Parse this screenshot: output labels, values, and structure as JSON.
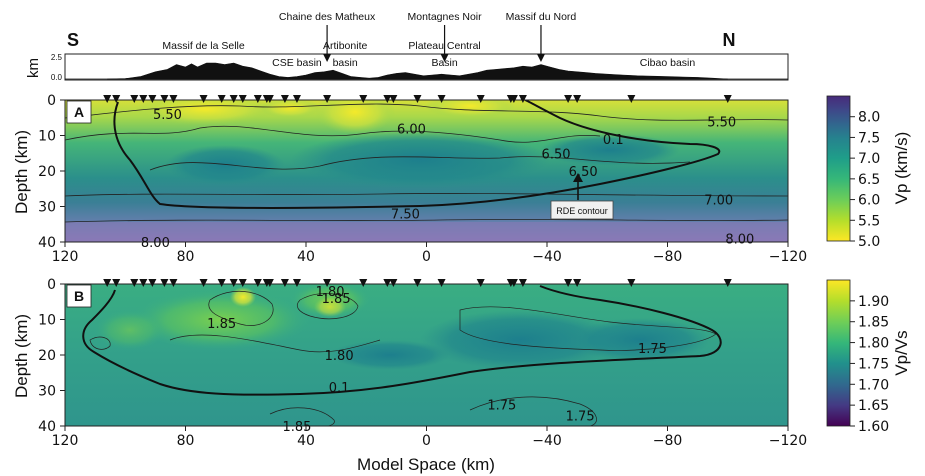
{
  "chart_data": [
    {
      "type": "heatmap",
      "panel": "A",
      "ylabel": "Depth (km)",
      "xlim": [
        120,
        -120
      ],
      "ylim": [
        40,
        0
      ],
      "x_ticks": [
        "120",
        "80",
        "40",
        "0",
        "−40",
        "−80",
        "−120"
      ],
      "x_tick_values": [
        120,
        80,
        40,
        0,
        -40,
        -80,
        -120
      ],
      "y_ticks": [
        "0",
        "10",
        "20",
        "30",
        "40"
      ],
      "y_tick_values": [
        0,
        10,
        20,
        30,
        40
      ],
      "colorbar": {
        "label": "Vp (km/s)",
        "range": [
          5.0,
          8.5
        ],
        "ticks": [
          "8.0",
          "7.5",
          "7.0",
          "6.5",
          "6.0",
          "5.5",
          "5.0"
        ],
        "tick_values": [
          8.0,
          7.5,
          7.0,
          6.5,
          6.0,
          5.5,
          5.0
        ],
        "colormap": "viridis_r"
      },
      "contour_labels": [
        {
          "text": "5.50",
          "x": 86,
          "y": 4
        },
        {
          "text": "6.00",
          "x": 5,
          "y": 8
        },
        {
          "text": "0.1",
          "x": -62,
          "y": 11
        },
        {
          "text": "5.50",
          "x": -98,
          "y": 6
        },
        {
          "text": "6.50",
          "x": -43,
          "y": 15
        },
        {
          "text": "6.50",
          "x": -52,
          "y": 20
        },
        {
          "text": "7.00",
          "x": -97,
          "y": 28
        },
        {
          "text": "7.50",
          "x": 7,
          "y": 32
        },
        {
          "text": "8.00",
          "x": 90,
          "y": 40
        },
        {
          "text": "8.00",
          "x": -104,
          "y": 39
        }
      ],
      "annotation": "RDE contour"
    },
    {
      "type": "heatmap",
      "panel": "B",
      "xlabel": "Model Space (km)",
      "ylabel": "Depth (km)",
      "xlim": [
        120,
        -120
      ],
      "ylim": [
        40,
        0
      ],
      "x_ticks": [
        "120",
        "80",
        "40",
        "0",
        "−40",
        "−80",
        "−120"
      ],
      "x_tick_values": [
        120,
        80,
        40,
        0,
        -40,
        -80,
        -120
      ],
      "y_ticks": [
        "0",
        "10",
        "20",
        "30",
        "40"
      ],
      "y_tick_values": [
        0,
        10,
        20,
        30,
        40
      ],
      "colorbar": {
        "label": "Vp/Vs",
        "range": [
          1.6,
          1.95
        ],
        "ticks": [
          "1.90",
          "1.85",
          "1.80",
          "1.75",
          "1.70",
          "1.65",
          "1.60"
        ],
        "tick_values": [
          1.9,
          1.85,
          1.8,
          1.75,
          1.7,
          1.65,
          1.6
        ],
        "colormap": "viridis"
      },
      "contour_labels": [
        {
          "text": "1.80",
          "x": 32,
          "y": 2
        },
        {
          "text": "1.85",
          "x": 30,
          "y": 4
        },
        {
          "text": "1.85",
          "x": 68,
          "y": 11
        },
        {
          "text": "1.80",
          "x": 29,
          "y": 20
        },
        {
          "text": "0.1",
          "x": 29,
          "y": 29
        },
        {
          "text": "1.75",
          "x": -75,
          "y": 18
        },
        {
          "text": "1.75",
          "x": -25,
          "y": 34
        },
        {
          "text": "1.75",
          "x": -51,
          "y": 37
        },
        {
          "text": "1.85",
          "x": 43,
          "y": 40
        }
      ]
    }
  ],
  "topo": {
    "ylabel": "km",
    "y_ticks": [
      "2.5",
      "0.0"
    ],
    "y_tick_values": [
      2.5,
      0.0
    ],
    "south": "S",
    "north": "N",
    "labels": [
      {
        "text": "Massif de la Selle",
        "x": 74,
        "y": 0
      },
      {
        "text": "CSE basin",
        "x": 43,
        "y": 1
      },
      {
        "text": "Artibonite",
        "x": 27,
        "y": 0
      },
      {
        "text": "basin",
        "x": 27,
        "y": 1
      },
      {
        "text": "Plateau Central",
        "x": -6,
        "y": 0
      },
      {
        "text": "Basin",
        "x": -6,
        "y": 1
      },
      {
        "text": "Cibao basin",
        "x": -80,
        "y": 1
      }
    ],
    "callouts": [
      {
        "text": "Chaine des Matheux",
        "x": 33
      },
      {
        "text": "Montagnes Noir",
        "x": -6
      },
      {
        "text": "Massif du Nord",
        "x": -38
      }
    ],
    "profile_x": [
      106,
      100,
      95,
      90,
      86,
      83,
      80,
      78,
      76,
      73,
      70,
      67,
      64,
      61,
      58,
      55,
      52,
      49,
      46,
      43,
      40,
      37,
      34,
      31,
      28,
      25,
      22,
      19,
      16,
      13,
      10,
      7,
      4,
      1,
      -2,
      -5,
      -8,
      -11,
      -14,
      -17,
      -20,
      -23,
      -26,
      -29,
      -32,
      -35,
      -38,
      -41,
      -44,
      -47,
      -50,
      -53,
      -56,
      -60,
      -65,
      -70,
      -75,
      -80,
      -85,
      -90,
      -95,
      -100
    ],
    "profile_h": [
      0,
      0.05,
      0.3,
      0.9,
      1.2,
      1.8,
      1.5,
      1.9,
      1.5,
      2.0,
      2.0,
      1.8,
      2.0,
      1.6,
      1.4,
      1.0,
      0.6,
      0.3,
      0.2,
      0.3,
      0.5,
      0.8,
      0.9,
      1.1,
      0.7,
      0.3,
      0.2,
      0.1,
      0.2,
      0.5,
      0.7,
      0.8,
      0.6,
      0.4,
      0.5,
      0.6,
      0.5,
      0.4,
      0.6,
      0.8,
      1.1,
      1.2,
      1.3,
      1.4,
      1.6,
      1.5,
      1.8,
      1.5,
      1.2,
      1.0,
      0.9,
      0.8,
      0.7,
      0.6,
      0.5,
      0.4,
      0.35,
      0.3,
      0.25,
      0.2,
      0.1,
      0
    ]
  },
  "stations_x": [
    106,
    103,
    97,
    94,
    91,
    87,
    84,
    74,
    68,
    64,
    61,
    56,
    53,
    52,
    47,
    43,
    33,
    21,
    13,
    11,
    3,
    -5,
    -18,
    -28,
    -29,
    -32,
    -47,
    -50,
    -68,
    -100
  ]
}
